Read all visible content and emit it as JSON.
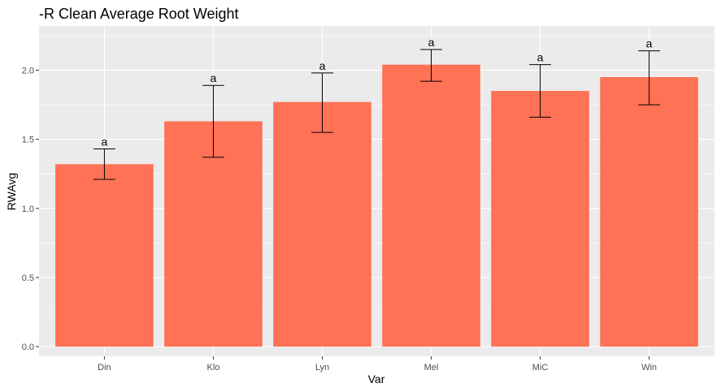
{
  "chart_data": {
    "type": "bar",
    "title": "-R Clean Average Root Weight",
    "xlabel": "Var",
    "ylabel": "RWAvg",
    "categories": [
      "Din",
      "Klo",
      "Lyn",
      "Mel",
      "MiC",
      "Win"
    ],
    "values": [
      1.32,
      1.63,
      1.77,
      2.04,
      1.85,
      1.95
    ],
    "error_low": [
      1.21,
      1.37,
      1.55,
      1.92,
      1.66,
      1.75
    ],
    "error_high": [
      1.43,
      1.89,
      1.98,
      2.15,
      2.04,
      2.14
    ],
    "labels": [
      "a",
      "a",
      "a",
      "a",
      "a",
      "a"
    ],
    "yticks": [
      0.0,
      0.5,
      1.0,
      1.5,
      2.0
    ],
    "ytick_labels": [
      "0.0",
      "0.5",
      "1.0",
      "1.5",
      "2.0"
    ],
    "ylim": [
      -0.07,
      2.32
    ],
    "grid": true,
    "legend": "none",
    "colors": {
      "bar": "#FF7256",
      "panel": "#EBEBEB",
      "grid": "#FFFFFF",
      "error_bar": "#000000"
    }
  }
}
